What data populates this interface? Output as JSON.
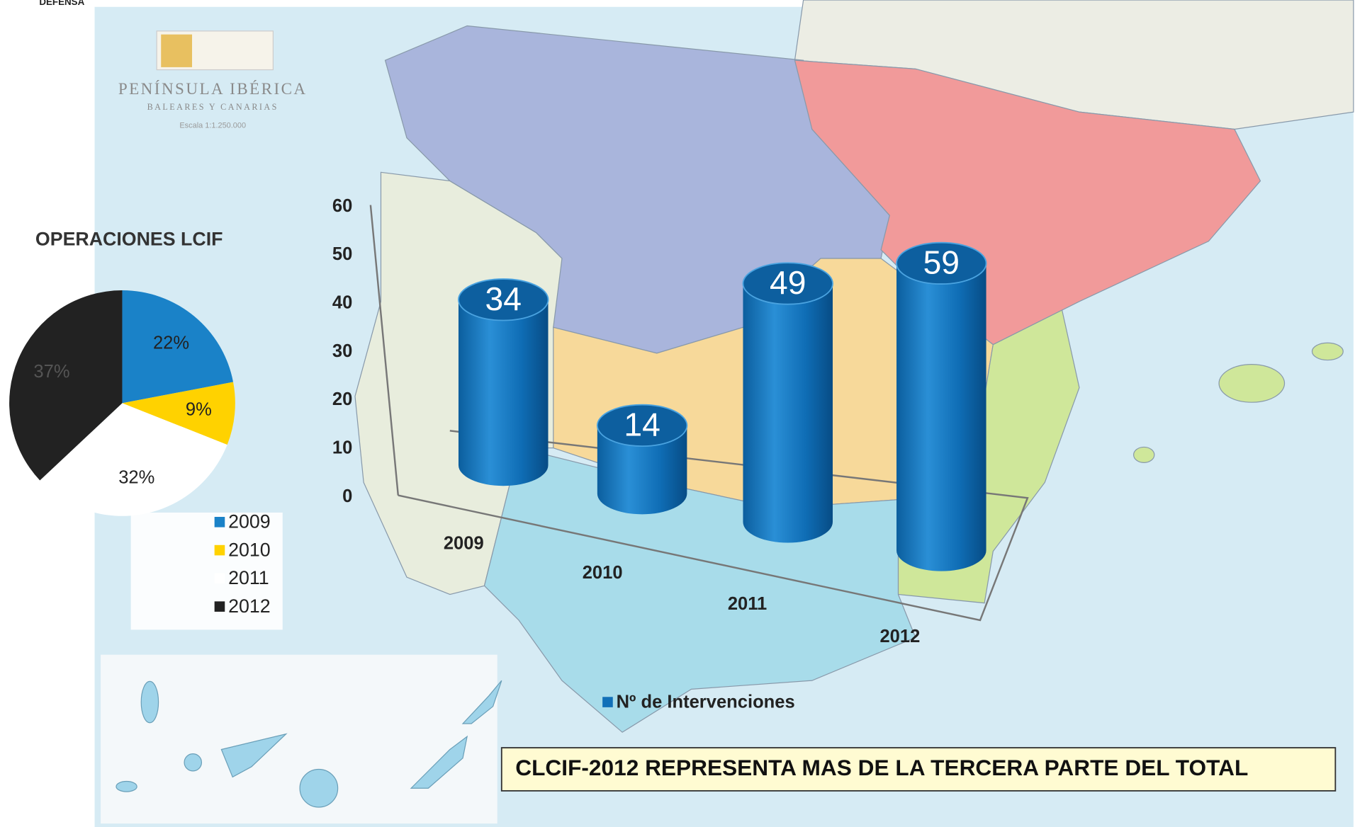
{
  "background": {
    "header": "DEFENSA",
    "map_title": "PENÍNSULA IBÉRICA",
    "map_subtitle": "BALEARES Y CANARIAS",
    "map_scale": "Escala 1:1.250.000"
  },
  "chart_data": [
    {
      "type": "pie",
      "title": "OPERACIONES LCIF",
      "categories": [
        "2009",
        "2010",
        "2011",
        "2012"
      ],
      "values": [
        22,
        9,
        32,
        37
      ],
      "value_labels": [
        "22%",
        "9%",
        "32%",
        "37%"
      ],
      "colors": [
        "#1a82c8",
        "#ffd200",
        "#ffffff",
        "#222222"
      ]
    },
    {
      "type": "bar",
      "categories": [
        "2009",
        "2010",
        "2011",
        "2012"
      ],
      "series": [
        {
          "name": "Nº de Intervenciones",
          "color": "#1170b8",
          "values": [
            34,
            14,
            49,
            59
          ]
        }
      ],
      "ylim": [
        0,
        60
      ],
      "yticks": [
        0,
        10,
        20,
        30,
        40,
        50,
        60
      ],
      "grid": false,
      "annotation": "CLCIF-2012 REPRESENTA MAS DE LA TERCERA PARTE DEL TOTAL"
    }
  ]
}
